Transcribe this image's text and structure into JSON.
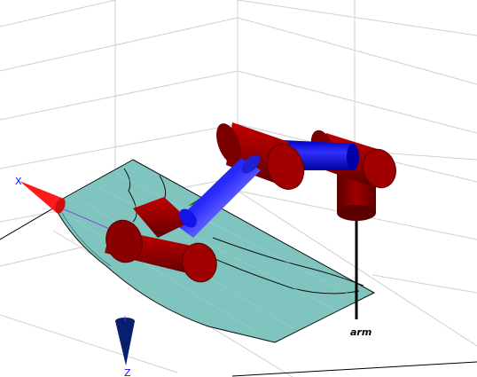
{
  "scene": {
    "robot_name": "arm",
    "axes": {
      "x_label": "X",
      "z_label": "Z"
    },
    "colors": {
      "background": "#ffffff",
      "grid": "#d0d0d0",
      "workspace_fill": "#7fc4be",
      "workspace_edge": "#111111",
      "joint_red": "#8b0000",
      "link_blue": "#1414e6",
      "base_pole": "#000000",
      "x_arrow": "#ff1a1a",
      "y_arrow": "#1e6b1e",
      "z_arrow": "#0a1e6e"
    },
    "icons": {
      "x_axis": "red-cone-arrow",
      "y_axis": "green-cone-arrow",
      "z_axis": "navy-cone-arrow"
    }
  }
}
